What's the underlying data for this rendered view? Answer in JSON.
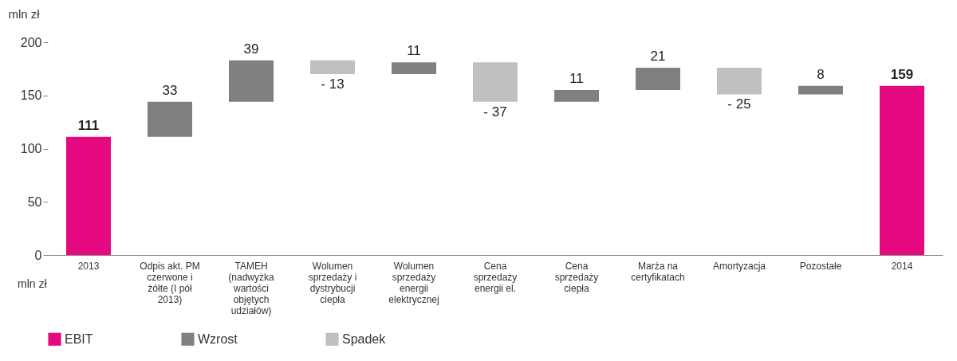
{
  "chart_data": {
    "type": "bar",
    "ylabel": "mln zł",
    "categories": [
      "2013",
      "Odpis akt. PM czerwone i żółte (I pół 2013)",
      "TAMEH (nadwyżka wartości objętych udziałów)",
      "Wolumen sprzedaży i dystrybucji ciepła",
      "Wolumen sprzedaży energii elektrycznej",
      "Cena sprzedaży energii el.",
      "Cena sprzedaży ciepła",
      "Marża na certyfikatach",
      "Amortyzacja",
      "Pozostałe",
      "2014"
    ],
    "series": [
      {
        "name": "EBIT",
        "color": "#e4097f",
        "values": [
          111,
          null,
          null,
          null,
          null,
          null,
          null,
          null,
          null,
          null,
          159
        ],
        "base": [
          0,
          null,
          null,
          null,
          null,
          null,
          null,
          null,
          null,
          null,
          0
        ],
        "value_labels": [
          "111",
          null,
          null,
          null,
          null,
          null,
          null,
          null,
          null,
          null,
          "159"
        ]
      },
      {
        "name": "Wzrost",
        "color": "#808080",
        "values": [
          null,
          33,
          39,
          null,
          11,
          null,
          11,
          21,
          null,
          8,
          null
        ],
        "base": [
          null,
          111,
          144,
          null,
          170,
          null,
          144,
          155,
          null,
          151,
          null
        ],
        "value_labels": [
          null,
          "33",
          "39",
          null,
          "11",
          null,
          "11",
          "21",
          null,
          "8",
          null
        ]
      },
      {
        "name": "Spadek",
        "color": "#c0c0c0",
        "values": [
          null,
          null,
          null,
          -13,
          null,
          -37,
          null,
          null,
          -25,
          null,
          null
        ],
        "base": [
          null,
          null,
          null,
          183,
          null,
          181,
          null,
          null,
          176,
          null,
          null
        ],
        "value_labels": [
          null,
          null,
          null,
          "- 13",
          null,
          "- 37",
          null,
          null,
          "- 25",
          null,
          null
        ]
      }
    ],
    "ylim": [
      0,
      200
    ],
    "yticks": [
      0,
      50,
      100,
      150,
      200
    ],
    "grid": false,
    "legend": "bottom",
    "annotations": [
      "mln zł"
    ]
  }
}
